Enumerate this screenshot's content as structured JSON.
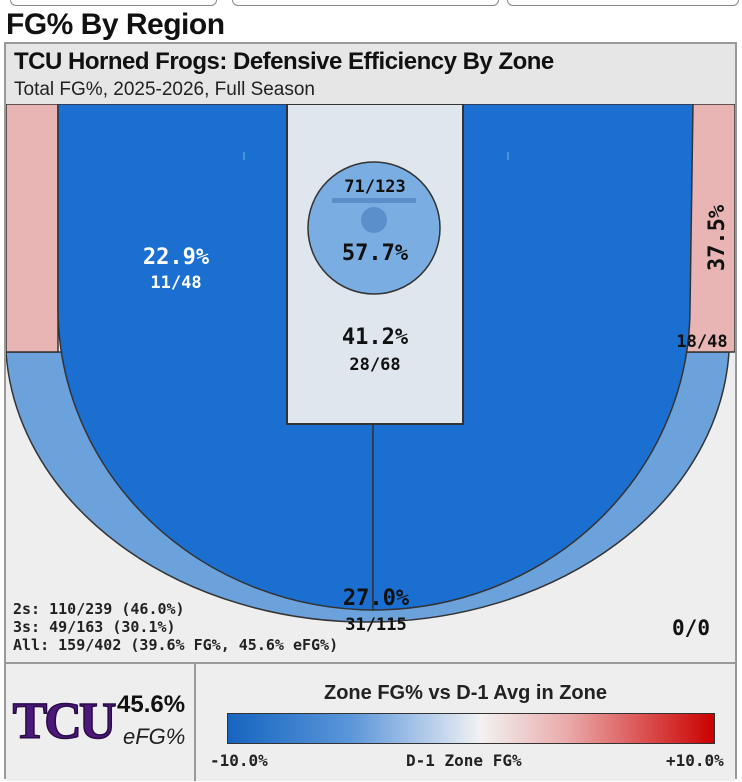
{
  "page": {
    "title": "FG% By Region"
  },
  "chart_data": {
    "type": "heatmap",
    "title": "TCU Horned Frogs: Defensive Efficiency By Zone",
    "subtitle": "Total FG%, 2025-2026, Full Season",
    "zones": [
      {
        "id": "left-corner-3",
        "pct": "",
        "made_att": "",
        "made": null,
        "att": null,
        "color": "#e8b4b4"
      },
      {
        "id": "left-midrange",
        "pct": "22.9%",
        "made_att": "11/48",
        "made": 11,
        "att": 48,
        "color": "#1a6fd0"
      },
      {
        "id": "restricted-area",
        "pct": "57.7%",
        "made_att": "71/123",
        "made": 71,
        "att": 123,
        "color": "#7aaee2"
      },
      {
        "id": "paint",
        "pct": "41.2%",
        "made_att": "28/68",
        "made": 28,
        "att": 68,
        "color": "#dfe6ee"
      },
      {
        "id": "right-midrange",
        "pct": "",
        "made_att": "",
        "made": null,
        "att": null,
        "color": "#1a6fd0"
      },
      {
        "id": "right-corner-3",
        "pct": "37.5%",
        "made_att": "18/48",
        "made": 18,
        "att": 48,
        "color": "#e8b4b4"
      },
      {
        "id": "above-break-3",
        "pct": "27.0%",
        "made_att": "31/115",
        "made": 31,
        "att": 115,
        "color": "#6ca2dc"
      },
      {
        "id": "backcourt",
        "pct": "",
        "made_att": "0/0",
        "made": 0,
        "att": 0,
        "color": "#eeeeee"
      }
    ],
    "summary": {
      "twos": "2s: 110/239 (46.0%)",
      "threes": "3s: 49/163 (30.1%)",
      "all": "All: 159/402 (39.6% FG%, 45.6% eFG%)"
    },
    "legend": {
      "title": "Zone FG% vs D-1 Avg in Zone",
      "min_label": "-10.0%",
      "mid_label": "D-1 Zone FG%",
      "max_label": "+10.0%",
      "min": -10.0,
      "max": 10.0,
      "colors": [
        "#1565c0",
        "#f2f2f2",
        "#cc0000"
      ]
    }
  },
  "team": {
    "logo_text": "TCU",
    "efg_value": "45.6%",
    "efg_label": "eFG%",
    "logo_color": "#4d1979"
  }
}
